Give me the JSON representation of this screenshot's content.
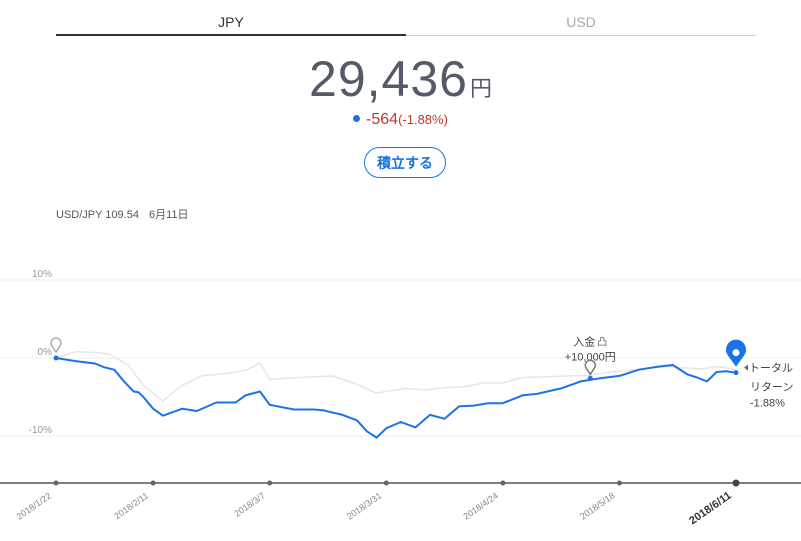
{
  "tabs": {
    "jpy": "JPY",
    "usd": "USD"
  },
  "balance": {
    "amount": "29,436",
    "unit": "円"
  },
  "change": {
    "value": "-564",
    "percent": "(-1.88%)"
  },
  "actions": {
    "accumulate": "積立する"
  },
  "fx": {
    "pair_rate": "USD/JPY 109.54",
    "date": "6月11日"
  },
  "colors": {
    "accent": "#1a73e8",
    "negative": "#c0392b",
    "comparison_line": "#e6e6e6"
  },
  "chart_data": {
    "type": "line",
    "x_ticks": [
      "2018/1/22",
      "2018/2/11",
      "2018/3/7",
      "2018/3/31",
      "2018/4/24",
      "2018/5/18",
      "2018/6/11"
    ],
    "y_ticks": [
      "10%",
      "0%",
      "-10%"
    ],
    "ylim": [
      -16,
      10
    ],
    "xlim": [
      "2018-01-22",
      "2018-06-11"
    ],
    "grid": true,
    "series": [
      {
        "values": [
          [
            "2018-01-22",
            0
          ],
          [
            "2018-01-26",
            -0.4
          ],
          [
            "2018-01-30",
            -0.7
          ],
          [
            "2018-02-01",
            -1.2
          ],
          [
            "2018-02-03",
            -1.5
          ],
          [
            "2018-02-05",
            -3
          ],
          [
            "2018-02-07",
            -4.3
          ],
          [
            "2018-02-08",
            -4.4
          ],
          [
            "2018-02-09",
            -5
          ],
          [
            "2018-02-11",
            -6.5
          ],
          [
            "2018-02-13",
            -7.4
          ],
          [
            "2018-02-17",
            -6.5
          ],
          [
            "2018-02-20",
            -6.8
          ],
          [
            "2018-02-24",
            -5.7
          ],
          [
            "2018-02-28",
            -5.7
          ],
          [
            "2018-03-02",
            -4.8
          ],
          [
            "2018-03-05",
            -4.3
          ],
          [
            "2018-03-07",
            -6.0
          ],
          [
            "2018-03-12",
            -6.6
          ],
          [
            "2018-03-16",
            -6.6
          ],
          [
            "2018-03-18",
            -6.7
          ],
          [
            "2018-03-22",
            -7.3
          ],
          [
            "2018-03-25",
            -8.0
          ],
          [
            "2018-03-27",
            -9.4
          ],
          [
            "2018-03-29",
            -10.2
          ],
          [
            "2018-03-31",
            -9.0
          ],
          [
            "2018-04-03",
            -8.2
          ],
          [
            "2018-04-06",
            -8.9
          ],
          [
            "2018-04-09",
            -7.3
          ],
          [
            "2018-04-12",
            -7.8
          ],
          [
            "2018-04-15",
            -6.2
          ],
          [
            "2018-04-18",
            -6.1
          ],
          [
            "2018-04-21",
            -5.8
          ],
          [
            "2018-04-24",
            -5.8
          ],
          [
            "2018-04-28",
            -4.8
          ],
          [
            "2018-05-01",
            -4.6
          ],
          [
            "2018-05-06",
            -3.9
          ],
          [
            "2018-05-10",
            -3.0
          ],
          [
            "2018-05-14",
            -2.6
          ],
          [
            "2018-05-18",
            -2.3
          ],
          [
            "2018-05-22",
            -1.5
          ],
          [
            "2018-05-26",
            -1.1
          ],
          [
            "2018-05-29",
            -0.9
          ],
          [
            "2018-06-01",
            -2.1
          ],
          [
            "2018-06-03",
            -2.5
          ],
          [
            "2018-06-05",
            -3.0
          ],
          [
            "2018-06-07",
            -1.8
          ],
          [
            "2018-06-09",
            -1.7
          ],
          [
            "2018-06-11",
            -1.88
          ]
        ]
      },
      {
        "values": [
          [
            "2018-01-22",
            0
          ],
          [
            "2018-01-26",
            0.8
          ],
          [
            "2018-01-30",
            0.7
          ],
          [
            "2018-02-02",
            0.5
          ],
          [
            "2018-02-06",
            -1
          ],
          [
            "2018-02-09",
            -3.5
          ],
          [
            "2018-02-13",
            -5.5
          ],
          [
            "2018-02-17",
            -3.5
          ],
          [
            "2018-02-21",
            -2.3
          ],
          [
            "2018-02-26",
            -2.0
          ],
          [
            "2018-03-02",
            -1.6
          ],
          [
            "2018-03-05",
            -0.6
          ],
          [
            "2018-03-07",
            -2.8
          ],
          [
            "2018-03-10",
            -2.6
          ],
          [
            "2018-03-16",
            -2.4
          ],
          [
            "2018-03-20",
            -2.3
          ],
          [
            "2018-03-25",
            -3.4
          ],
          [
            "2018-03-29",
            -4.5
          ],
          [
            "2018-03-31",
            -4.3
          ],
          [
            "2018-04-04",
            -3.9
          ],
          [
            "2018-04-08",
            -4.1
          ],
          [
            "2018-04-12",
            -3.8
          ],
          [
            "2018-04-16",
            -3.7
          ],
          [
            "2018-04-20",
            -3.2
          ],
          [
            "2018-04-24",
            -3.2
          ],
          [
            "2018-04-28",
            -2.5
          ],
          [
            "2018-05-03",
            -2.4
          ],
          [
            "2018-05-08",
            -2.3
          ],
          [
            "2018-05-12",
            -2.2
          ],
          [
            "2018-05-16",
            -1.8
          ],
          [
            "2018-05-20",
            -1.6
          ],
          [
            "2018-05-24",
            -1.3
          ],
          [
            "2018-05-28",
            -1.1
          ],
          [
            "2018-06-01",
            -1.3
          ],
          [
            "2018-06-04",
            -1.4
          ],
          [
            "2018-06-07",
            -1.1
          ],
          [
            "2018-06-09",
            -1.3
          ],
          [
            "2018-06-11",
            -1.5
          ]
        ]
      }
    ],
    "annotations": {
      "deposit_label": "入金",
      "deposit_amount": "+10,000円",
      "deposit_date": "2018-05-12",
      "deposit_value": -2.6,
      "total_return_label_1": "トータル",
      "total_return_label_2": "リターン",
      "total_return_value": "-1.88%"
    }
  }
}
